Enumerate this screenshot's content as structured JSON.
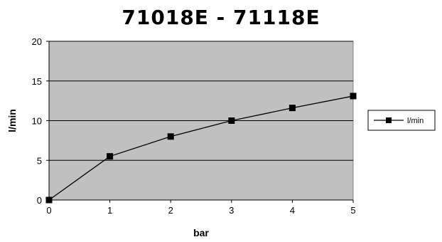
{
  "chart_data": {
    "type": "line",
    "title": "71018E - 71118E",
    "xlabel": "bar",
    "ylabel": "l/min",
    "x": [
      0,
      1,
      2,
      3,
      4,
      5
    ],
    "series": [
      {
        "name": "l/min",
        "values": [
          0,
          5.5,
          8.0,
          10.0,
          11.6,
          13.1
        ]
      }
    ],
    "xlim": [
      0,
      5
    ],
    "ylim": [
      0,
      20
    ],
    "yticks": [
      0,
      5,
      10,
      15,
      20
    ],
    "xticks": [
      0,
      1,
      2,
      3,
      4,
      5
    ],
    "grid": "horizontal",
    "legend": "right",
    "colors": {
      "plot_background": "#c0c0c0",
      "line": "#000000",
      "marker": "#000000",
      "gridline": "#000000"
    }
  }
}
